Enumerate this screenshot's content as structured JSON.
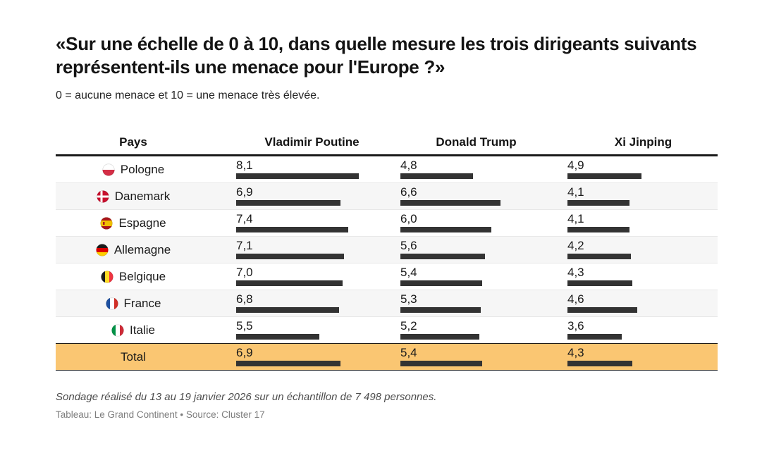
{
  "title": "«Sur une échelle de 0 à 10, dans quelle mesure les trois dirigeants suivants représentent-ils une menace pour l'Europe ?»",
  "subtitle": "0 = aucune menace et 10 = une menace très élevée.",
  "table": {
    "columns": [
      "Pays",
      "Vladimir Poutine",
      "Donald Trump",
      "Xi Jinping"
    ],
    "flag_icons": [
      "poland-flag-icon",
      "denmark-flag-icon",
      "spain-flag-icon",
      "germany-flag-icon",
      "belgium-flag-icon",
      "france-flag-icon",
      "italy-flag-icon",
      null
    ]
  },
  "chart_data": {
    "type": "table",
    "title": "«Sur une échelle de 0 à 10, dans quelle mesure les trois dirigeants suivants représentent-ils une menace pour l'Europe ?»",
    "subtitle": "0 = aucune menace et 10 = une menace très élevée.",
    "categories": [
      "Pologne",
      "Danemark",
      "Espagne",
      "Allemagne",
      "Belgique",
      "France",
      "Italie",
      "Total"
    ],
    "series": [
      {
        "name": "Vladimir Poutine",
        "values": [
          8.1,
          6.9,
          7.4,
          7.1,
          7.0,
          6.8,
          5.5,
          6.9
        ]
      },
      {
        "name": "Donald Trump",
        "values": [
          4.8,
          6.6,
          6.0,
          5.6,
          5.4,
          5.3,
          5.2,
          5.4
        ]
      },
      {
        "name": "Xi Jinping",
        "values": [
          4.9,
          4.1,
          4.1,
          4.2,
          4.3,
          4.6,
          3.6,
          4.3
        ]
      }
    ],
    "value_range": [
      0,
      10
    ],
    "decimal_separator": ",",
    "total_row_label": "Total",
    "bar_style": "horizontal bars under each numeric value",
    "legend_position": "column headers"
  },
  "footer": {
    "note": "Sondage réalisé du 13 au 19 janvier 2026 sur un échantillon de 7 498 personnes.",
    "credit": "Tableau: Le Grand Continent • Source: Cluster 17"
  },
  "colors": {
    "bar": "#333333",
    "total_row_bg": "#FAC672",
    "alt_row_bg": "#F6F6F6",
    "accent_border": "#1A1A1A"
  }
}
